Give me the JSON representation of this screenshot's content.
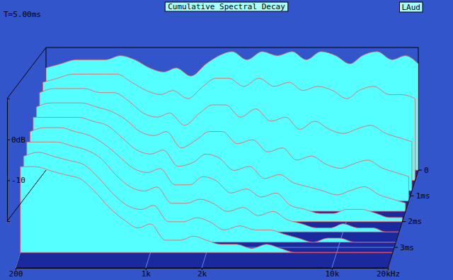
{
  "chart_data": {
    "type": "waterfall",
    "title": "Cumulative Spectral Decay",
    "annotations": [
      "T=5.00ms",
      "LAud"
    ],
    "color": "#55ffff",
    "log": "x",
    "grid": true,
    "x": [
      200,
      240,
      290,
      350,
      420,
      500,
      600,
      720,
      860,
      1000,
      1200,
      1450,
      1700,
      2000,
      2400,
      2900,
      3500,
      4200,
      5000,
      6000,
      7200,
      8600,
      10000,
      12000,
      14500,
      17000,
      20000
    ],
    "xlim": [
      200,
      20000
    ],
    "xticks": [
      200,
      {
        "value": 1000,
        "label": "1k"
      },
      {
        "value": 2000,
        "label": "2k"
      },
      {
        "value": 10000,
        "label": "10k"
      },
      {
        "value": 20000,
        "label": "20kHz"
      }
    ],
    "ylim": [
      -20,
      10
    ],
    "yticks": [
      -10,
      {
        "value": 0,
        "label": "0dB"
      }
    ],
    "tlim": [
      0,
      3.8
    ],
    "tticks": [
      0,
      {
        "value": 1,
        "label": "1ms"
      },
      {
        "value": 2,
        "label": "2ms"
      },
      {
        "value": 3,
        "label": "3ms"
      }
    ],
    "series": [
      {
        "t": 0,
        "values": [
          5,
          6,
          7,
          7,
          7,
          8,
          7,
          5,
          4,
          5,
          3,
          6,
          8,
          9,
          7,
          9,
          8,
          9,
          7,
          9,
          8,
          6,
          8,
          9,
          7,
          8,
          6
        ]
      },
      {
        "t": 0.4,
        "values": [
          4,
          5,
          6,
          6,
          6,
          6,
          4,
          2,
          1,
          2,
          0,
          3,
          5,
          5,
          3,
          5,
          3,
          4,
          2,
          3,
          2,
          0,
          2,
          3,
          1,
          1,
          0
        ]
      },
      {
        "t": 0.8,
        "values": [
          4,
          5,
          5,
          5,
          4,
          4,
          2,
          -1,
          -2,
          -1,
          -4,
          -1,
          1,
          1,
          -2,
          0,
          -3,
          -2,
          -5,
          -3,
          -5,
          -6,
          -5,
          -4,
          -6,
          -7,
          -8
        ]
      },
      {
        "t": 1.2,
        "values": [
          3,
          4,
          4,
          4,
          3,
          2,
          0,
          -3,
          -4,
          -3,
          -7,
          -5,
          -3,
          -3,
          -6,
          -5,
          -8,
          -7,
          -10,
          -9,
          -11,
          -12,
          -11,
          -10,
          -12,
          -13,
          -14
        ]
      },
      {
        "t": 1.6,
        "values": [
          3,
          3,
          3,
          3,
          2,
          1,
          -2,
          -5,
          -6,
          -5,
          -9,
          -8,
          -6,
          -7,
          -10,
          -9,
          -12,
          -11,
          -13,
          -14,
          -15,
          -16,
          -15,
          -14,
          -16,
          -17,
          -18
        ]
      },
      {
        "t": 2.0,
        "values": [
          2,
          3,
          3,
          2,
          1,
          -1,
          -4,
          -7,
          -8,
          -7,
          -11,
          -11,
          -9,
          -10,
          -13,
          -12,
          -14,
          -13,
          -16,
          -17,
          -18,
          -18,
          -17,
          -17,
          -18,
          -19,
          -19
        ]
      },
      {
        "t": 2.4,
        "values": [
          2,
          2,
          2,
          1,
          0,
          -2,
          -6,
          -9,
          -10,
          -9,
          -13,
          -13,
          -12,
          -13,
          -15,
          -14,
          -16,
          -15,
          -17,
          -18,
          -19,
          -19,
          -18,
          -19,
          -19,
          -20,
          -20
        ]
      },
      {
        "t": 2.8,
        "values": [
          1,
          2,
          1,
          0,
          -1,
          -4,
          -8,
          -11,
          -12,
          -11,
          -15,
          -15,
          -14,
          -15,
          -17,
          -16,
          -17,
          -17,
          -18,
          -19,
          -20,
          -19,
          -19,
          -20,
          -20,
          -20,
          -20
        ]
      },
      {
        "t": 3.2,
        "values": [
          1,
          1,
          0,
          -1,
          -2,
          -5,
          -9,
          -12,
          -14,
          -13,
          -17,
          -17,
          -16,
          -17,
          -18,
          -18,
          -19,
          -18,
          -19,
          -20,
          -20,
          -20,
          -20,
          -20,
          -20,
          -20,
          -20
        ]
      }
    ]
  }
}
